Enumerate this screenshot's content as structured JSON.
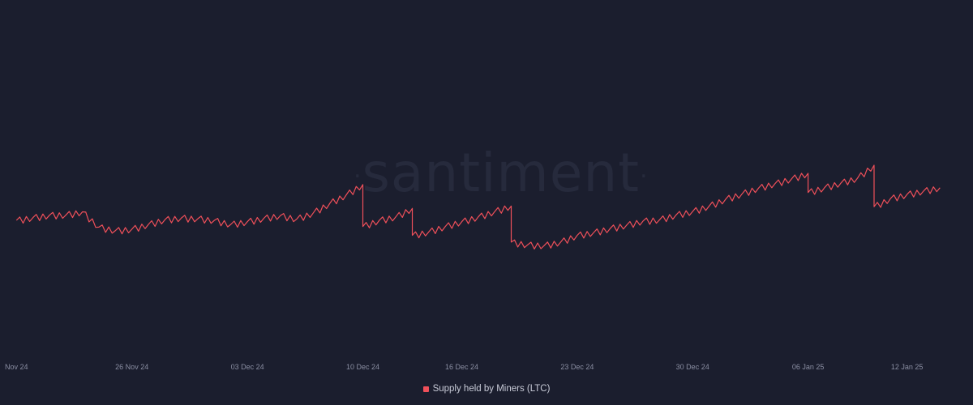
{
  "watermark": "santiment",
  "colors": {
    "background": "#1b1e2e",
    "series": "#f0505a",
    "tick_text": "#8b8fa3"
  },
  "chart_data": {
    "type": "line",
    "title": "",
    "xlabel": "",
    "ylabel": "",
    "x_tick_labels": [
      "Nov 24",
      "26 Nov 24",
      "03 Dec 24",
      "10 Dec 24",
      "16 Dec 24",
      "23 Dec 24",
      "30 Dec 24",
      "06 Jan 25",
      "12 Jan 25"
    ],
    "y_axis_visible": false,
    "ylim": [
      0,
      100
    ],
    "grid": false,
    "legend_position": "bottom-center",
    "series": [
      {
        "name": "Supply held by Miners (LTC)",
        "color": "#f0505a",
        "points": [
          [
            "2024-11-19",
            40
          ],
          [
            "2024-11-20",
            40.8
          ],
          [
            "2024-11-21",
            41.5
          ],
          [
            "2024-11-22",
            41.6
          ],
          [
            "2024-11-23",
            42.5
          ],
          [
            "2024-11-24",
            38
          ],
          [
            "2024-11-25",
            37
          ],
          [
            "2024-11-26",
            37.4
          ],
          [
            "2024-11-27",
            38.8
          ],
          [
            "2024-11-28",
            40.2
          ],
          [
            "2024-11-29",
            40.7
          ],
          [
            "2024-11-30",
            40.5
          ],
          [
            "2024-12-01",
            40
          ],
          [
            "2024-12-02",
            38.8
          ],
          [
            "2024-12-03",
            39.6
          ],
          [
            "2024-12-04",
            40.6
          ],
          [
            "2024-12-05",
            41.4
          ],
          [
            "2024-12-06",
            40.4
          ],
          [
            "2024-12-07",
            42.2
          ],
          [
            "2024-12-08",
            45
          ],
          [
            "2024-12-09",
            47.5
          ],
          [
            "2024-12-10",
            50.5
          ],
          [
            "2024-12-10",
            38.2
          ],
          [
            "2024-12-11",
            40
          ],
          [
            "2024-12-12",
            41
          ],
          [
            "2024-12-13",
            43.5
          ],
          [
            "2024-12-13",
            35.6
          ],
          [
            "2024-12-14",
            36.6
          ],
          [
            "2024-12-15",
            38.2
          ],
          [
            "2024-12-16",
            39.6
          ],
          [
            "2024-12-17",
            41
          ],
          [
            "2024-12-18",
            42.6
          ],
          [
            "2024-12-19",
            44.2
          ],
          [
            "2024-12-19",
            33.6
          ],
          [
            "2024-12-20",
            32.8
          ],
          [
            "2024-12-21",
            32.6
          ],
          [
            "2024-12-22",
            33.6
          ],
          [
            "2024-12-23",
            35.6
          ],
          [
            "2024-12-24",
            36.4
          ],
          [
            "2024-12-25",
            37.6
          ],
          [
            "2024-12-26",
            38.6
          ],
          [
            "2024-12-27",
            39.8
          ],
          [
            "2024-12-28",
            40.2
          ],
          [
            "2024-12-29",
            41.6
          ],
          [
            "2024-12-30",
            42.6
          ],
          [
            "2024-12-31",
            44.2
          ],
          [
            "2025-01-01",
            46.2
          ],
          [
            "2025-01-02",
            47.8
          ],
          [
            "2025-01-03",
            49.5
          ],
          [
            "2025-01-04",
            50.8
          ],
          [
            "2025-01-05",
            52.2
          ],
          [
            "2025-01-06",
            53.8
          ],
          [
            "2025-01-06",
            48.2
          ],
          [
            "2025-01-07",
            49.6
          ],
          [
            "2025-01-08",
            51
          ],
          [
            "2025-01-09",
            52.4
          ],
          [
            "2025-01-10",
            56.2
          ],
          [
            "2025-01-10",
            44
          ],
          [
            "2025-01-11",
            46.4
          ],
          [
            "2025-01-12",
            47.6
          ],
          [
            "2025-01-13",
            48.6
          ],
          [
            "2025-01-14",
            49.6
          ]
        ]
      }
    ]
  }
}
